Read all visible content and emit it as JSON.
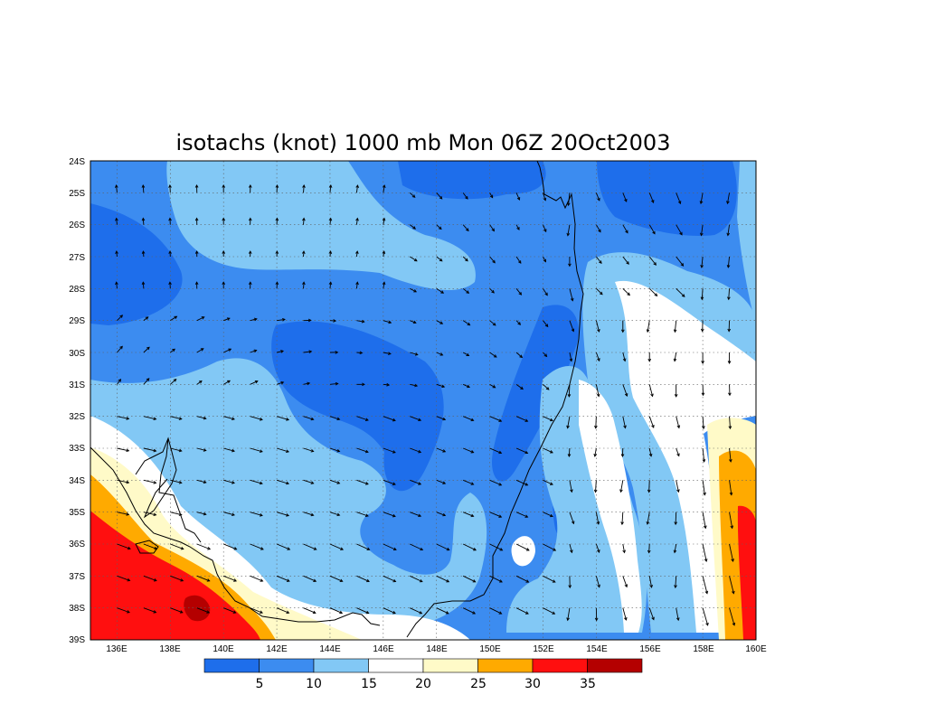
{
  "chart_data": {
    "type": "heatmap",
    "title": "isotachs (knot) 1000 mb Mon 06Z 20Oct2003",
    "x_ticks": [
      "136E",
      "138E",
      "140E",
      "142E",
      "144E",
      "146E",
      "148E",
      "150E",
      "152E",
      "154E",
      "156E",
      "158E",
      "160E"
    ],
    "y_ticks": [
      "24S",
      "25S",
      "26S",
      "27S",
      "28S",
      "29S",
      "30S",
      "31S",
      "32S",
      "33S",
      "34S",
      "35S",
      "36S",
      "37S",
      "38S",
      "39S"
    ],
    "xlim": [
      135,
      160
    ],
    "ylim": [
      -39,
      -24
    ],
    "grid": true,
    "colorbar": {
      "labels": [
        "5",
        "10",
        "15",
        "20",
        "25",
        "30",
        "35"
      ],
      "bins": [
        {
          "range": "<5",
          "color": "#1e6eeb"
        },
        {
          "range": "5-10",
          "color": "#3c8cf0"
        },
        {
          "range": "10-15",
          "color": "#82c8f5"
        },
        {
          "range": "15-20",
          "color": "#ffffff"
        },
        {
          "range": "20-25",
          "color": "#fffac8"
        },
        {
          "range": "25-30",
          "color": "#ffaa00"
        },
        {
          "range": "30-35",
          "color": "#ff0f0f"
        },
        {
          "range": ">35",
          "color": "#b40000"
        }
      ]
    },
    "field_hotspots_knots": [
      {
        "lon": 136.5,
        "lat": -26.8,
        "value": 4
      },
      {
        "lon": 140.5,
        "lat": -31.0,
        "value": 8
      },
      {
        "lon": 146.5,
        "lat": -30.5,
        "value": 3
      },
      {
        "lon": 150.5,
        "lat": -25.0,
        "value": 3
      },
      {
        "lon": 157.5,
        "lat": -25.5,
        "value": 3
      },
      {
        "lon": 152.5,
        "lat": -30.0,
        "value": 4
      },
      {
        "lon": 152.8,
        "lat": -35.0,
        "value": 3
      },
      {
        "lon": 157.0,
        "lat": -34.5,
        "value": 4
      },
      {
        "lon": 141.5,
        "lat": -28.5,
        "value": 13
      },
      {
        "lon": 155.5,
        "lat": -29.8,
        "value": 18
      },
      {
        "lon": 154.5,
        "lat": -33.5,
        "value": 17
      },
      {
        "lon": 159.5,
        "lat": -36.0,
        "value": 32
      },
      {
        "lon": 138.0,
        "lat": -37.0,
        "value": 30
      },
      {
        "lon": 139.2,
        "lat": -38.0,
        "value": 36
      }
    ]
  }
}
